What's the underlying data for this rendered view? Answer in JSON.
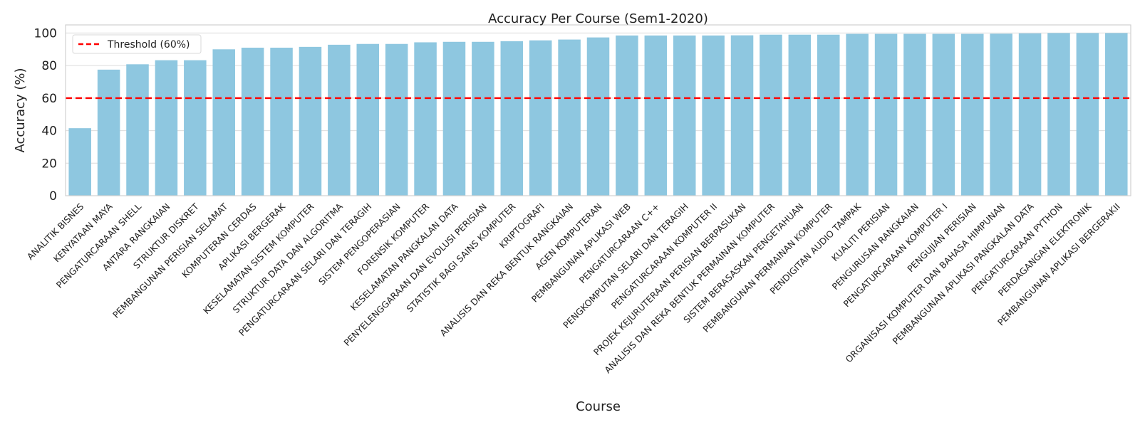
{
  "chart_data": {
    "type": "bar",
    "title": "Accuracy Per Course (Sem1-2020)",
    "xlabel": "Course",
    "ylabel": "Accuracy (%)",
    "ylim": [
      0,
      105
    ],
    "yticks": [
      0,
      20,
      40,
      60,
      80,
      100
    ],
    "grid": "horizontal",
    "bar_color": "#8ec7e0",
    "categories": [
      "ANALITIK BISNES",
      "KENYATAAN MAYA",
      "PENGATURCARAAN SHELL",
      "ANTARA RANGKAIAN",
      "STRUKTUR DISKRET",
      "PEMBANGUNAN PERISIAN SELAMAT",
      "KOMPUTERAN CERDAS",
      "APLIKASI BERGERAK",
      "KESELAMATAN SISTEM KOMPUTER",
      "STRUKTUR DATA DAN ALGORITMA",
      "PENGATURCARAAN SELARI DAN TERAGIH",
      "SISTEM PENGOPERASIAN",
      "FORENSIK KOMPUTER",
      "KESELAMATAN PANGKALAN DATA",
      "PENYELENGGARAAN DAN EVOLUSI PERISIAN",
      "STATISTIK BAGI SAINS KOMPUTER",
      "KRIPTOGRAFI",
      "ANALISIS DAN REKA BENTUK RANGKAIAN",
      "AGEN KOMPUTERAN",
      "PEMBANGUNAN APLIKASI WEB",
      "PENGATURCARAAN C++",
      "PENGKOMPUTAN SELARI DAN TERAGIH",
      "PENGATURCARAAN KOMPUTER II",
      "PROJEK KEJURUTERAAN PERISIAN BERPASUKAN",
      "ANALISIS DAN REKA BENTUK PERMAINAN KOMPUTER",
      "SISTEM BERASASKAN PENGETAHUAN",
      "PEMBANGUNAN PERMAINAN KOMPUTER",
      "PENDIGITAN AUDIO TAMPAK",
      "KUALITI PERISIAN",
      "PENGURUSAN RANGKAIAN",
      "PENGATURCARAAN KOMPUTER I",
      "PENGUJIAN PERISIAN",
      "ORGANISASI KOMPUTER DAN BAHASA HIMPUNAN",
      "PEMBANGUNAN APLIKASI PANGKALAN DATA",
      "PENGATURCARAAN PYTHON",
      "PERDAGANGAN ELEKTRONIK",
      "PEMBANGUNAN APLIKASI BERGERAKII"
    ],
    "values": [
      41.5,
      77.5,
      80.8,
      83.3,
      83.3,
      90.0,
      91.0,
      91.0,
      91.5,
      92.8,
      93.3,
      93.3,
      94.3,
      94.6,
      94.6,
      95.0,
      95.5,
      96.0,
      97.3,
      98.5,
      98.5,
      98.5,
      98.5,
      98.6,
      99.0,
      99.0,
      99.0,
      99.5,
      99.5,
      99.5,
      99.5,
      99.5,
      99.6,
      99.8,
      100.0,
      100.0,
      100.0
    ],
    "threshold": {
      "value": 60,
      "label": "Threshold (60%)",
      "color": "#ff0000"
    },
    "legend_placement": "top-left"
  }
}
